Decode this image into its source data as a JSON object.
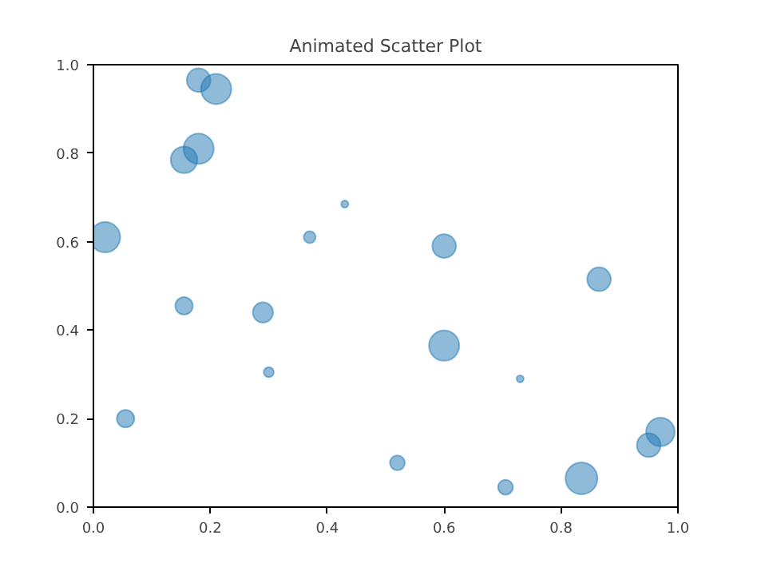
{
  "chart_data": {
    "type": "bubble",
    "title": "Animated Scatter Plot",
    "x": [
      0.02,
      0.055,
      0.155,
      0.155,
      0.18,
      0.18,
      0.21,
      0.29,
      0.3,
      0.37,
      0.43,
      0.52,
      0.6,
      0.6,
      0.705,
      0.73,
      0.835,
      0.865,
      0.95,
      0.97
    ],
    "series": [
      {
        "color": "#1f77b4",
        "values": [
          0.61,
          0.2,
          0.455,
          0.785,
          0.965,
          0.81,
          0.945,
          0.44,
          0.305,
          0.61,
          0.685,
          0.1,
          0.59,
          0.365,
          0.045,
          0.29,
          0.065,
          0.515,
          0.14,
          0.17
        ],
        "sizes": [
          0.9,
          0.3,
          0.3,
          0.7,
          0.55,
          0.9,
          0.9,
          0.4,
          0.1,
          0.14,
          0.05,
          0.22,
          0.55,
          0.9,
          0.22,
          0.05,
          1.0,
          0.55,
          0.55,
          0.8
        ]
      }
    ],
    "xlim": [
      0,
      1
    ],
    "ylim": [
      0,
      1
    ],
    "xticks": [
      {
        "value": 0,
        "label": "0.0"
      },
      0.2,
      0.4,
      0.6,
      0.8,
      {
        "value": 1,
        "label": "1.0"
      }
    ],
    "yticks": [
      {
        "value": 0,
        "label": "0.0"
      },
      0.2,
      0.4,
      0.6,
      0.8,
      {
        "value": 1,
        "label": "1.0"
      }
    ],
    "grid": false
  }
}
